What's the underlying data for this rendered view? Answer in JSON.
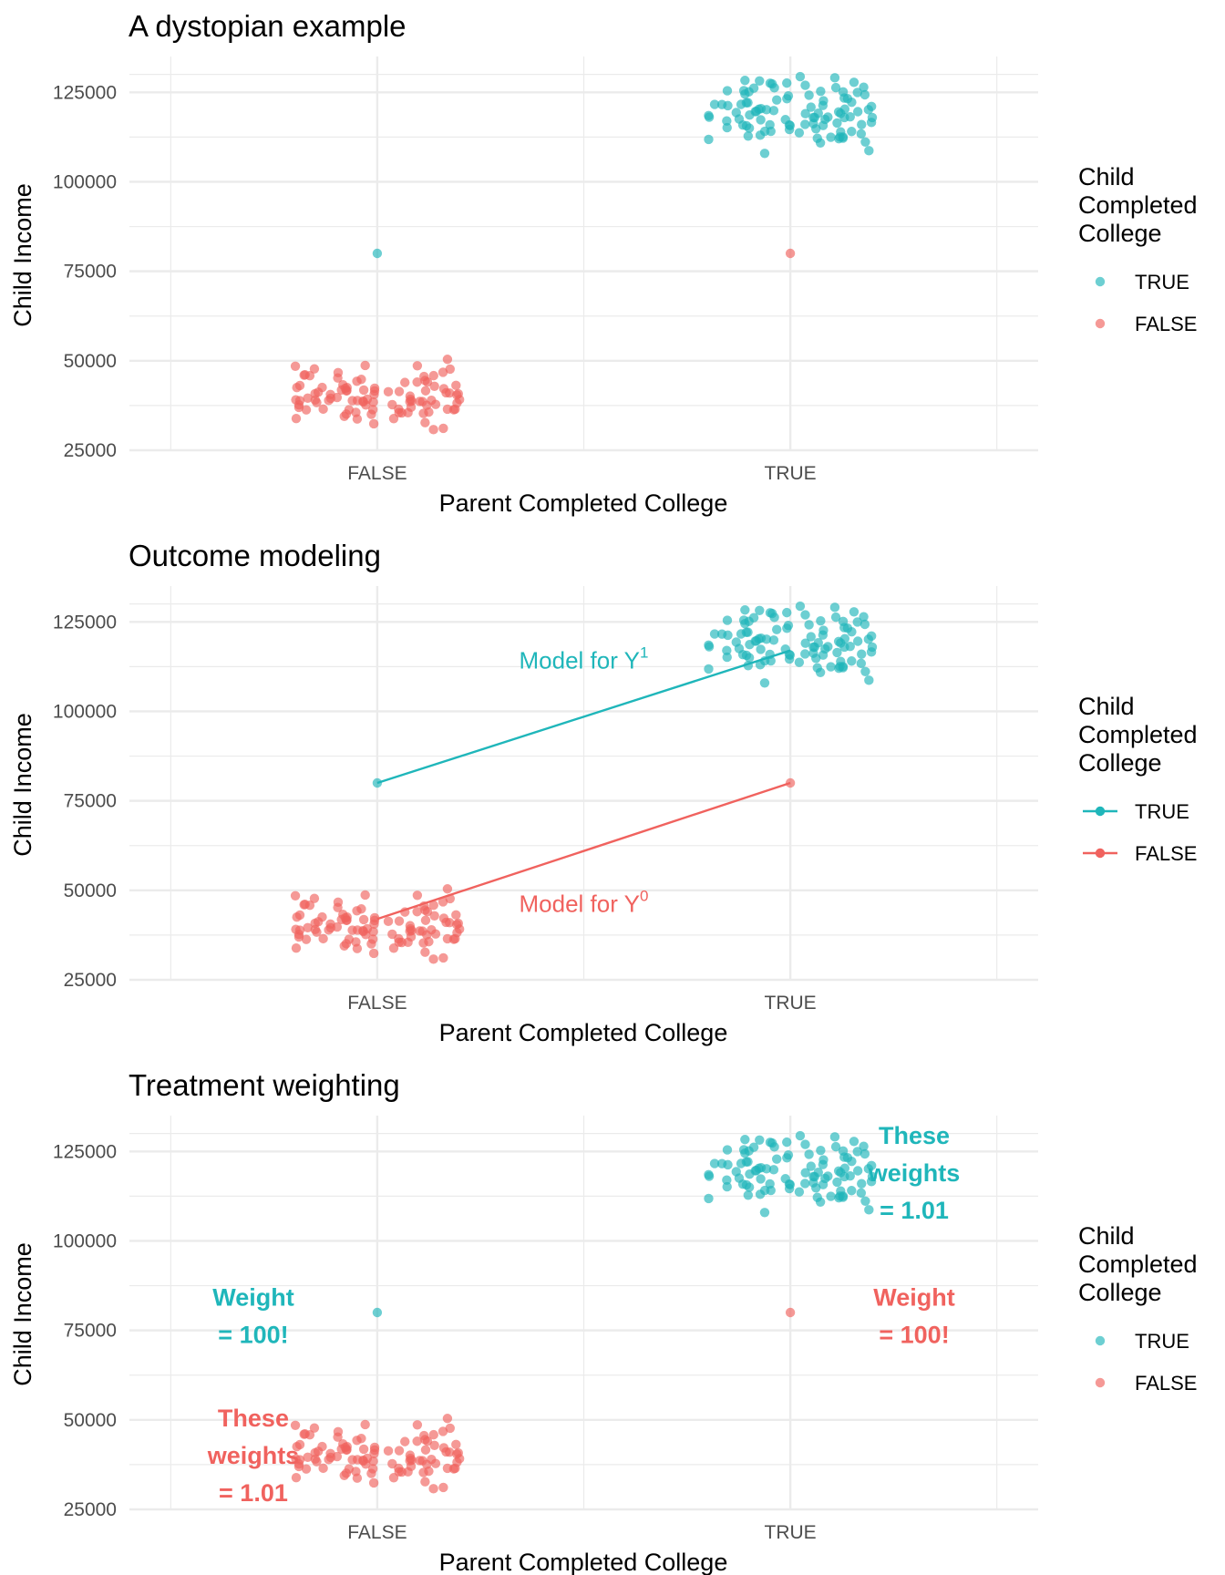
{
  "colors": {
    "true": "#1FB6BA",
    "false": "#F0625E",
    "grid": "#EBEBEB"
  },
  "legend": {
    "title_lines": [
      "Child",
      "Completed",
      "College"
    ],
    "items": [
      {
        "key": "true",
        "label": "TRUE"
      },
      {
        "key": "false",
        "label": "FALSE"
      }
    ]
  },
  "chart_data": [
    {
      "type": "scatter",
      "title": "A dystopian example",
      "xlabel": "Parent Completed College",
      "ylabel": "Child Income",
      "categories": [
        "FALSE",
        "TRUE"
      ],
      "ylim": [
        25000,
        135000
      ],
      "yticks": [
        25000,
        50000,
        75000,
        100000,
        125000
      ],
      "grid": true,
      "legend_position": "right",
      "legend_style": "point",
      "series": [
        {
          "name": "TRUE",
          "groups": [
            {
              "x": "TRUE",
              "center": 120000,
              "sd": 5000,
              "n": 100
            },
            {
              "x": "FALSE",
              "points": [
                80000
              ]
            }
          ]
        },
        {
          "name": "FALSE",
          "groups": [
            {
              "x": "FALSE",
              "center": 40000,
              "sd": 4000,
              "n": 100
            },
            {
              "x": "TRUE",
              "points": [
                80000
              ]
            }
          ]
        }
      ]
    },
    {
      "type": "scatter",
      "title": "Outcome modeling",
      "xlabel": "Parent Completed College",
      "ylabel": "Child Income",
      "categories": [
        "FALSE",
        "TRUE"
      ],
      "ylim": [
        25000,
        135000
      ],
      "yticks": [
        25000,
        50000,
        75000,
        100000,
        125000
      ],
      "grid": true,
      "legend_position": "right",
      "legend_style": "line-point",
      "series": [
        {
          "name": "TRUE",
          "groups": [
            {
              "x": "TRUE",
              "center": 120000,
              "sd": 5000,
              "n": 100
            },
            {
              "x": "FALSE",
              "points": [
                80000
              ]
            }
          ]
        },
        {
          "name": "FALSE",
          "groups": [
            {
              "x": "FALSE",
              "center": 40000,
              "sd": 4000,
              "n": 100
            },
            {
              "x": "TRUE",
              "points": [
                80000
              ]
            }
          ]
        }
      ],
      "lines": [
        {
          "key": "true",
          "from": [
            "FALSE",
            80000
          ],
          "to": [
            "TRUE",
            117000
          ]
        },
        {
          "key": "false",
          "from": [
            "FALSE",
            42000
          ],
          "to": [
            "TRUE",
            80000
          ]
        }
      ],
      "annotations": [
        {
          "key": "true",
          "text": "Model for Y",
          "sup": "1",
          "x": 1.5,
          "y": 112000
        },
        {
          "key": "false",
          "text": "Model for Y",
          "sup": "0",
          "x": 1.5,
          "y": 44000
        }
      ]
    },
    {
      "type": "scatter",
      "title": "Treatment weighting",
      "xlabel": "Parent Completed College",
      "ylabel": "Child Income",
      "categories": [
        "FALSE",
        "TRUE"
      ],
      "ylim": [
        25000,
        135000
      ],
      "yticks": [
        25000,
        50000,
        75000,
        100000,
        125000
      ],
      "grid": true,
      "legend_position": "right",
      "legend_style": "point",
      "series": [
        {
          "name": "TRUE",
          "groups": [
            {
              "x": "TRUE",
              "center": 120000,
              "sd": 5000,
              "n": 100
            },
            {
              "x": "FALSE",
              "points": [
                80000
              ]
            }
          ]
        },
        {
          "name": "FALSE",
          "groups": [
            {
              "x": "FALSE",
              "center": 40000,
              "sd": 4000,
              "n": 100
            },
            {
              "x": "TRUE",
              "points": [
                80000
              ]
            }
          ]
        }
      ],
      "annotations": [
        {
          "key": "true",
          "lines": [
            "These",
            "weights",
            "= 1.01"
          ],
          "x": 2.3,
          "y": 119000,
          "bold": true
        },
        {
          "key": "true",
          "lines": [
            "Weight",
            "= 100!"
          ],
          "x": 0.7,
          "y": 79000,
          "bold": true
        },
        {
          "key": "false",
          "lines": [
            "Weight",
            "= 100!"
          ],
          "x": 2.3,
          "y": 79000,
          "bold": true
        },
        {
          "key": "false",
          "lines": [
            "These",
            "weights",
            "= 1.01"
          ],
          "x": 0.7,
          "y": 40000,
          "bold": true
        }
      ]
    }
  ]
}
